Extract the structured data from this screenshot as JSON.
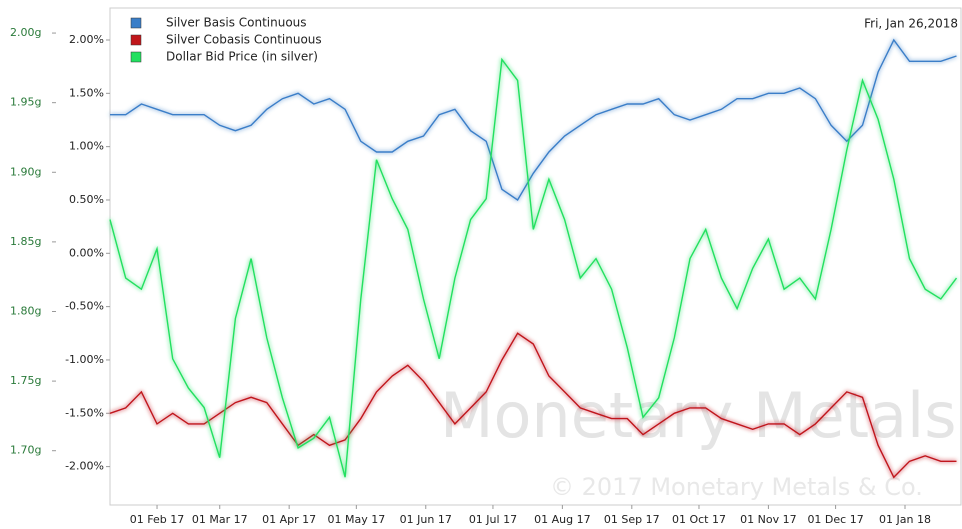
{
  "chart_data": {
    "type": "line",
    "date_label": "Fri, Jan 26,2018",
    "watermark": "Monetary Metals",
    "copyright": "© 2017 Monetary Metals & Co.",
    "x": [
      "2017-01-11",
      "2017-01-18",
      "2017-01-25",
      "2017-02-01",
      "2017-02-08",
      "2017-02-15",
      "2017-02-22",
      "2017-03-01",
      "2017-03-08",
      "2017-03-15",
      "2017-03-22",
      "2017-03-29",
      "2017-04-05",
      "2017-04-12",
      "2017-04-19",
      "2017-04-26",
      "2017-05-03",
      "2017-05-10",
      "2017-05-17",
      "2017-05-24",
      "2017-05-31",
      "2017-06-07",
      "2017-06-14",
      "2017-06-21",
      "2017-06-28",
      "2017-07-05",
      "2017-07-12",
      "2017-07-19",
      "2017-07-26",
      "2017-08-02",
      "2017-08-09",
      "2017-08-16",
      "2017-08-23",
      "2017-08-30",
      "2017-09-06",
      "2017-09-13",
      "2017-09-20",
      "2017-09-27",
      "2017-10-04",
      "2017-10-11",
      "2017-10-18",
      "2017-10-25",
      "2017-11-01",
      "2017-11-08",
      "2017-11-15",
      "2017-11-22",
      "2017-11-29",
      "2017-12-06",
      "2017-12-13",
      "2017-12-20",
      "2017-12-27",
      "2018-01-03",
      "2018-01-10",
      "2018-01-17",
      "2018-01-24"
    ],
    "xlim": [
      "2017-01-11",
      "2018-01-26"
    ],
    "xticks": [
      {
        "value": "2017-02-01",
        "label": "01 Feb 17"
      },
      {
        "value": "2017-03-01",
        "label": "01 Mar 17"
      },
      {
        "value": "2017-04-01",
        "label": "01 Apr 17"
      },
      {
        "value": "2017-05-01",
        "label": "01 May 17"
      },
      {
        "value": "2017-06-01",
        "label": "01 Jun 17"
      },
      {
        "value": "2017-07-01",
        "label": "01 Jul 17"
      },
      {
        "value": "2017-08-01",
        "label": "01 Aug 17"
      },
      {
        "value": "2017-09-01",
        "label": "01 Sep 17"
      },
      {
        "value": "2017-10-01",
        "label": "01 Oct 17"
      },
      {
        "value": "2017-11-01",
        "label": "01 Nov 17"
      },
      {
        "value": "2017-12-01",
        "label": "01 Dec 17"
      },
      {
        "value": "2018-01-01",
        "label": "01 Jan 18"
      }
    ],
    "ylim": [
      -2.36,
      2.3
    ],
    "yticks": [
      {
        "value": 2,
        "label": "2.00%"
      },
      {
        "value": 1.5,
        "label": "1.50%"
      },
      {
        "value": 1,
        "label": "1.00%"
      },
      {
        "value": 0.5,
        "label": "0.50%"
      },
      {
        "value": 0,
        "label": "0.00%"
      },
      {
        "value": -0.5,
        "label": "-0.50%"
      },
      {
        "value": -1,
        "label": "-1.00%"
      },
      {
        "value": -1.5,
        "label": "-1.50%"
      },
      {
        "value": -2,
        "label": "-2.00%"
      }
    ],
    "y2lim": [
      1.661,
      2.018
    ],
    "y2ticks": [
      {
        "value": 2,
        "label": "2.00g"
      },
      {
        "value": 1.95,
        "label": "1.95g"
      },
      {
        "value": 1.9,
        "label": "1.90g"
      },
      {
        "value": 1.85,
        "label": "1.85g"
      },
      {
        "value": 1.8,
        "label": "1.80g"
      },
      {
        "value": 1.75,
        "label": "1.75g"
      },
      {
        "value": 1.7,
        "label": "1.70g"
      }
    ],
    "series": [
      {
        "name": "Silver Basis Continuous",
        "color": "#3a7ec8",
        "values": [
          1.3,
          1.3,
          1.4,
          1.35,
          1.3,
          1.3,
          1.3,
          1.2,
          1.15,
          1.2,
          1.35,
          1.45,
          1.5,
          1.4,
          1.45,
          1.35,
          1.05,
          0.95,
          0.95,
          1.05,
          1.1,
          1.3,
          1.35,
          1.15,
          1.05,
          0.6,
          0.5,
          0.75,
          0.95,
          1.1,
          1.2,
          1.3,
          1.35,
          1.4,
          1.4,
          1.45,
          1.3,
          1.25,
          1.3,
          1.35,
          1.45,
          1.45,
          1.5,
          1.5,
          1.55,
          1.45,
          1.2,
          1.05,
          1.2,
          1.7,
          2.0,
          1.8,
          1.8,
          1.8,
          1.85
        ]
      },
      {
        "name": "Silver Cobasis Continuous",
        "color": "#c0161a",
        "values": [
          -1.5,
          -1.45,
          -1.3,
          -1.6,
          -1.5,
          -1.6,
          -1.6,
          -1.5,
          -1.4,
          -1.35,
          -1.4,
          -1.6,
          -1.8,
          -1.7,
          -1.8,
          -1.75,
          -1.55,
          -1.3,
          -1.15,
          -1.05,
          -1.2,
          -1.4,
          -1.6,
          -1.45,
          -1.3,
          -1.0,
          -0.75,
          -0.85,
          -1.15,
          -1.3,
          -1.45,
          -1.5,
          -1.55,
          -1.55,
          -1.7,
          -1.6,
          -1.5,
          -1.45,
          -1.45,
          -1.55,
          -1.6,
          -1.65,
          -1.6,
          -1.6,
          -1.7,
          -1.6,
          -1.45,
          -1.3,
          -1.35,
          -1.8,
          -2.1,
          -1.95,
          -1.9,
          -1.95,
          -1.95
        ]
      },
      {
        "name": "Dollar Bid Price (in silver)",
        "color": "#22e060",
        "axis": "y2",
        "values": [
          1.866,
          1.824,
          1.816,
          1.845,
          1.766,
          1.745,
          1.731,
          1.695,
          1.795,
          1.838,
          1.781,
          1.738,
          1.702,
          1.709,
          1.724,
          1.681,
          1.809,
          1.909,
          1.881,
          1.859,
          1.809,
          1.766,
          1.824,
          1.866,
          1.881,
          1.981,
          1.966,
          1.859,
          1.895,
          1.866,
          1.824,
          1.838,
          1.816,
          1.774,
          1.724,
          1.738,
          1.781,
          1.838,
          1.859,
          1.824,
          1.802,
          1.831,
          1.852,
          1.816,
          1.824,
          1.809,
          1.859,
          1.916,
          1.966,
          1.938,
          1.895,
          1.838,
          1.816,
          1.809,
          1.824
        ]
      }
    ]
  }
}
